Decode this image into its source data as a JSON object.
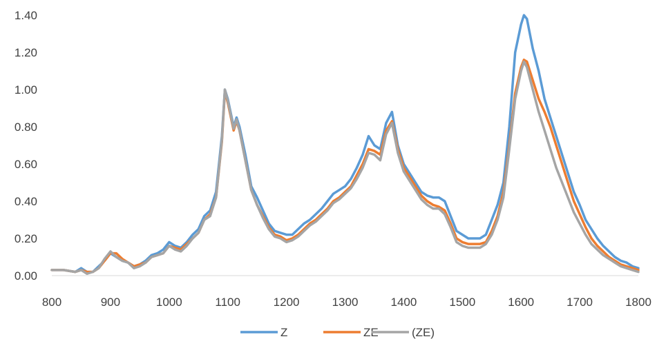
{
  "chart_data": {
    "type": "line",
    "title": "",
    "xlabel": "",
    "ylabel": "",
    "xlim": [
      800,
      1800
    ],
    "ylim": [
      0,
      1.4
    ],
    "x_ticks": [
      "800",
      "900",
      "1000",
      "1100",
      "1200",
      "1300",
      "1400",
      "1500",
      "1600",
      "1700",
      "1800"
    ],
    "y_ticks": [
      "0.00",
      "0.20",
      "0.40",
      "0.60",
      "0.80",
      "1.00",
      "1.20",
      "1.40"
    ],
    "grid": false,
    "legend_position": "bottom",
    "series": [
      {
        "name": "Z",
        "color": "#5B9BD5",
        "points": [
          [
            800,
            0.03
          ],
          [
            820,
            0.03
          ],
          [
            840,
            0.02
          ],
          [
            850,
            0.04
          ],
          [
            860,
            0.02
          ],
          [
            870,
            0.02
          ],
          [
            880,
            0.05
          ],
          [
            890,
            0.08
          ],
          [
            900,
            0.12
          ],
          [
            910,
            0.1
          ],
          [
            920,
            0.08
          ],
          [
            930,
            0.07
          ],
          [
            940,
            0.05
          ],
          [
            950,
            0.06
          ],
          [
            960,
            0.08
          ],
          [
            970,
            0.11
          ],
          [
            980,
            0.12
          ],
          [
            990,
            0.14
          ],
          [
            1000,
            0.18
          ],
          [
            1010,
            0.16
          ],
          [
            1020,
            0.15
          ],
          [
            1030,
            0.18
          ],
          [
            1040,
            0.22
          ],
          [
            1050,
            0.25
          ],
          [
            1060,
            0.32
          ],
          [
            1070,
            0.35
          ],
          [
            1080,
            0.45
          ],
          [
            1090,
            0.75
          ],
          [
            1095,
            1.0
          ],
          [
            1100,
            0.95
          ],
          [
            1110,
            0.8
          ],
          [
            1115,
            0.85
          ],
          [
            1120,
            0.8
          ],
          [
            1130,
            0.65
          ],
          [
            1140,
            0.48
          ],
          [
            1150,
            0.42
          ],
          [
            1160,
            0.35
          ],
          [
            1170,
            0.28
          ],
          [
            1180,
            0.24
          ],
          [
            1190,
            0.23
          ],
          [
            1200,
            0.22
          ],
          [
            1210,
            0.22
          ],
          [
            1220,
            0.25
          ],
          [
            1230,
            0.28
          ],
          [
            1240,
            0.3
          ],
          [
            1250,
            0.33
          ],
          [
            1260,
            0.36
          ],
          [
            1270,
            0.4
          ],
          [
            1280,
            0.44
          ],
          [
            1290,
            0.46
          ],
          [
            1300,
            0.48
          ],
          [
            1310,
            0.52
          ],
          [
            1320,
            0.58
          ],
          [
            1330,
            0.65
          ],
          [
            1340,
            0.75
          ],
          [
            1350,
            0.7
          ],
          [
            1360,
            0.68
          ],
          [
            1370,
            0.82
          ],
          [
            1380,
            0.88
          ],
          [
            1390,
            0.7
          ],
          [
            1400,
            0.6
          ],
          [
            1410,
            0.55
          ],
          [
            1420,
            0.5
          ],
          [
            1430,
            0.45
          ],
          [
            1440,
            0.43
          ],
          [
            1450,
            0.42
          ],
          [
            1460,
            0.42
          ],
          [
            1470,
            0.4
          ],
          [
            1480,
            0.32
          ],
          [
            1490,
            0.24
          ],
          [
            1500,
            0.22
          ],
          [
            1510,
            0.2
          ],
          [
            1520,
            0.2
          ],
          [
            1530,
            0.2
          ],
          [
            1540,
            0.22
          ],
          [
            1550,
            0.3
          ],
          [
            1560,
            0.38
          ],
          [
            1570,
            0.5
          ],
          [
            1580,
            0.8
          ],
          [
            1590,
            1.2
          ],
          [
            1600,
            1.35
          ],
          [
            1605,
            1.4
          ],
          [
            1610,
            1.38
          ],
          [
            1620,
            1.22
          ],
          [
            1630,
            1.1
          ],
          [
            1640,
            0.95
          ],
          [
            1650,
            0.85
          ],
          [
            1660,
            0.75
          ],
          [
            1670,
            0.65
          ],
          [
            1680,
            0.55
          ],
          [
            1690,
            0.45
          ],
          [
            1700,
            0.38
          ],
          [
            1710,
            0.3
          ],
          [
            1720,
            0.25
          ],
          [
            1730,
            0.2
          ],
          [
            1740,
            0.16
          ],
          [
            1750,
            0.13
          ],
          [
            1760,
            0.1
          ],
          [
            1770,
            0.08
          ],
          [
            1780,
            0.07
          ],
          [
            1790,
            0.05
          ],
          [
            1800,
            0.04
          ]
        ]
      },
      {
        "name": "ZE",
        "color": "#ED7D31",
        "points": [
          [
            800,
            0.03
          ],
          [
            820,
            0.03
          ],
          [
            840,
            0.02
          ],
          [
            850,
            0.03
          ],
          [
            860,
            0.02
          ],
          [
            870,
            0.02
          ],
          [
            880,
            0.04
          ],
          [
            890,
            0.08
          ],
          [
            900,
            0.12
          ],
          [
            910,
            0.12
          ],
          [
            920,
            0.09
          ],
          [
            930,
            0.07
          ],
          [
            940,
            0.05
          ],
          [
            950,
            0.06
          ],
          [
            960,
            0.07
          ],
          [
            970,
            0.1
          ],
          [
            980,
            0.11
          ],
          [
            990,
            0.12
          ],
          [
            1000,
            0.16
          ],
          [
            1010,
            0.15
          ],
          [
            1020,
            0.14
          ],
          [
            1030,
            0.17
          ],
          [
            1040,
            0.2
          ],
          [
            1050,
            0.23
          ],
          [
            1060,
            0.3
          ],
          [
            1070,
            0.33
          ],
          [
            1080,
            0.42
          ],
          [
            1090,
            0.72
          ],
          [
            1095,
            0.99
          ],
          [
            1100,
            0.93
          ],
          [
            1110,
            0.78
          ],
          [
            1115,
            0.83
          ],
          [
            1120,
            0.78
          ],
          [
            1130,
            0.62
          ],
          [
            1140,
            0.46
          ],
          [
            1150,
            0.38
          ],
          [
            1160,
            0.32
          ],
          [
            1170,
            0.26
          ],
          [
            1180,
            0.22
          ],
          [
            1190,
            0.21
          ],
          [
            1200,
            0.19
          ],
          [
            1210,
            0.2
          ],
          [
            1220,
            0.22
          ],
          [
            1230,
            0.25
          ],
          [
            1240,
            0.28
          ],
          [
            1250,
            0.3
          ],
          [
            1260,
            0.33
          ],
          [
            1270,
            0.36
          ],
          [
            1280,
            0.4
          ],
          [
            1290,
            0.42
          ],
          [
            1300,
            0.45
          ],
          [
            1310,
            0.48
          ],
          [
            1320,
            0.54
          ],
          [
            1330,
            0.6
          ],
          [
            1340,
            0.68
          ],
          [
            1350,
            0.67
          ],
          [
            1360,
            0.65
          ],
          [
            1370,
            0.78
          ],
          [
            1380,
            0.83
          ],
          [
            1390,
            0.68
          ],
          [
            1400,
            0.58
          ],
          [
            1410,
            0.53
          ],
          [
            1420,
            0.48
          ],
          [
            1430,
            0.43
          ],
          [
            1440,
            0.4
          ],
          [
            1450,
            0.38
          ],
          [
            1460,
            0.37
          ],
          [
            1470,
            0.35
          ],
          [
            1480,
            0.28
          ],
          [
            1490,
            0.2
          ],
          [
            1500,
            0.18
          ],
          [
            1510,
            0.17
          ],
          [
            1520,
            0.17
          ],
          [
            1530,
            0.17
          ],
          [
            1540,
            0.18
          ],
          [
            1550,
            0.24
          ],
          [
            1560,
            0.32
          ],
          [
            1570,
            0.45
          ],
          [
            1580,
            0.7
          ],
          [
            1590,
            0.98
          ],
          [
            1600,
            1.12
          ],
          [
            1605,
            1.16
          ],
          [
            1610,
            1.15
          ],
          [
            1620,
            1.05
          ],
          [
            1630,
            0.95
          ],
          [
            1640,
            0.88
          ],
          [
            1650,
            0.8
          ],
          [
            1660,
            0.7
          ],
          [
            1670,
            0.6
          ],
          [
            1680,
            0.5
          ],
          [
            1690,
            0.4
          ],
          [
            1700,
            0.33
          ],
          [
            1710,
            0.26
          ],
          [
            1720,
            0.2
          ],
          [
            1730,
            0.16
          ],
          [
            1740,
            0.13
          ],
          [
            1750,
            0.1
          ],
          [
            1760,
            0.08
          ],
          [
            1770,
            0.06
          ],
          [
            1780,
            0.05
          ],
          [
            1790,
            0.04
          ],
          [
            1800,
            0.03
          ]
        ]
      },
      {
        "name": "(ZE)",
        "color": "#A5A5A5",
        "points": [
          [
            800,
            0.03
          ],
          [
            820,
            0.03
          ],
          [
            840,
            0.02
          ],
          [
            850,
            0.03
          ],
          [
            860,
            0.01
          ],
          [
            870,
            0.02
          ],
          [
            880,
            0.04
          ],
          [
            890,
            0.09
          ],
          [
            900,
            0.13
          ],
          [
            910,
            0.1
          ],
          [
            920,
            0.08
          ],
          [
            930,
            0.07
          ],
          [
            940,
            0.04
          ],
          [
            950,
            0.05
          ],
          [
            960,
            0.07
          ],
          [
            970,
            0.1
          ],
          [
            980,
            0.11
          ],
          [
            990,
            0.12
          ],
          [
            1000,
            0.16
          ],
          [
            1010,
            0.14
          ],
          [
            1020,
            0.13
          ],
          [
            1030,
            0.16
          ],
          [
            1040,
            0.2
          ],
          [
            1050,
            0.23
          ],
          [
            1060,
            0.3
          ],
          [
            1070,
            0.32
          ],
          [
            1080,
            0.42
          ],
          [
            1090,
            0.73
          ],
          [
            1095,
            1.0
          ],
          [
            1100,
            0.94
          ],
          [
            1110,
            0.79
          ],
          [
            1115,
            0.84
          ],
          [
            1120,
            0.78
          ],
          [
            1130,
            0.62
          ],
          [
            1140,
            0.46
          ],
          [
            1150,
            0.38
          ],
          [
            1160,
            0.31
          ],
          [
            1170,
            0.25
          ],
          [
            1180,
            0.21
          ],
          [
            1190,
            0.2
          ],
          [
            1200,
            0.18
          ],
          [
            1210,
            0.19
          ],
          [
            1220,
            0.21
          ],
          [
            1230,
            0.24
          ],
          [
            1240,
            0.27
          ],
          [
            1250,
            0.29
          ],
          [
            1260,
            0.32
          ],
          [
            1270,
            0.35
          ],
          [
            1280,
            0.39
          ],
          [
            1290,
            0.41
          ],
          [
            1300,
            0.44
          ],
          [
            1310,
            0.47
          ],
          [
            1320,
            0.52
          ],
          [
            1330,
            0.58
          ],
          [
            1340,
            0.66
          ],
          [
            1350,
            0.65
          ],
          [
            1360,
            0.62
          ],
          [
            1370,
            0.76
          ],
          [
            1380,
            0.82
          ],
          [
            1390,
            0.66
          ],
          [
            1400,
            0.56
          ],
          [
            1410,
            0.51
          ],
          [
            1420,
            0.46
          ],
          [
            1430,
            0.41
          ],
          [
            1440,
            0.38
          ],
          [
            1450,
            0.36
          ],
          [
            1460,
            0.36
          ],
          [
            1470,
            0.33
          ],
          [
            1480,
            0.26
          ],
          [
            1490,
            0.18
          ],
          [
            1500,
            0.16
          ],
          [
            1510,
            0.15
          ],
          [
            1520,
            0.15
          ],
          [
            1530,
            0.15
          ],
          [
            1540,
            0.17
          ],
          [
            1550,
            0.22
          ],
          [
            1560,
            0.3
          ],
          [
            1570,
            0.42
          ],
          [
            1580,
            0.68
          ],
          [
            1590,
            0.95
          ],
          [
            1600,
            1.1
          ],
          [
            1605,
            1.15
          ],
          [
            1610,
            1.12
          ],
          [
            1620,
            1.0
          ],
          [
            1630,
            0.88
          ],
          [
            1640,
            0.78
          ],
          [
            1650,
            0.68
          ],
          [
            1660,
            0.58
          ],
          [
            1670,
            0.5
          ],
          [
            1680,
            0.42
          ],
          [
            1690,
            0.34
          ],
          [
            1700,
            0.28
          ],
          [
            1710,
            0.22
          ],
          [
            1720,
            0.17
          ],
          [
            1730,
            0.14
          ],
          [
            1740,
            0.11
          ],
          [
            1750,
            0.09
          ],
          [
            1760,
            0.07
          ],
          [
            1770,
            0.05
          ],
          [
            1780,
            0.04
          ],
          [
            1790,
            0.03
          ],
          [
            1800,
            0.02
          ]
        ]
      }
    ]
  }
}
